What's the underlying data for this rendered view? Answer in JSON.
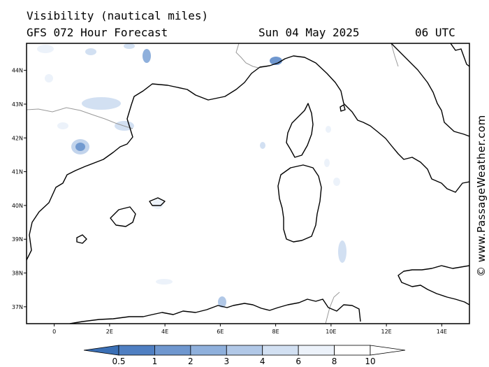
{
  "header": {
    "title": "Visibility (nautical miles)",
    "subtitle": "GFS 072 Hour Forecast",
    "date": "Sun 04 May 2025",
    "time": "06 UTC"
  },
  "credit": "© www.PassageWeather.com",
  "map": {
    "lon_range": [
      -1.0,
      15.0
    ],
    "lat_range": [
      36.5,
      44.8
    ],
    "lon_ticks": [
      {
        "value": 0,
        "label": "0"
      },
      {
        "value": 2,
        "label": "2E"
      },
      {
        "value": 4,
        "label": "4E"
      },
      {
        "value": 6,
        "label": "6E"
      },
      {
        "value": 8,
        "label": "8E"
      },
      {
        "value": 10,
        "label": "10E"
      },
      {
        "value": 12,
        "label": "12E"
      },
      {
        "value": 14,
        "label": "14E"
      }
    ],
    "lat_ticks": [
      {
        "value": 44,
        "label": "44N"
      },
      {
        "value": 43,
        "label": "43N"
      },
      {
        "value": 42,
        "label": "42N"
      },
      {
        "value": 41,
        "label": "41N"
      },
      {
        "value": 40,
        "label": "40N"
      },
      {
        "value": 39,
        "label": "39N"
      },
      {
        "value": 38,
        "label": "38N"
      },
      {
        "value": 37,
        "label": "37N"
      }
    ],
    "coast_color": "#000000",
    "border_color": "#999999"
  },
  "colorbar": {
    "labels": [
      "0.5",
      "1",
      "2",
      "3",
      "4",
      "6",
      "8",
      "10"
    ],
    "colors": [
      "#3a6fb5",
      "#4f7fc2",
      "#6f97cf",
      "#8fb0dc",
      "#b1c8e7",
      "#d2e0f2",
      "#ecf2fa",
      "#ffffff"
    ]
  }
}
